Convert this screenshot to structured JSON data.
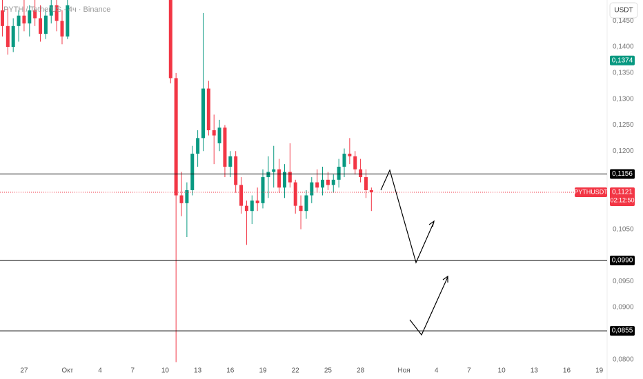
{
  "chart_data": {
    "type": "candlestick",
    "title": "PYTH / TetherUS · 4ч · Binance",
    "currency": "USDT",
    "symbol": "PYTHUSDT",
    "countdown": "02:12:50",
    "up_color": "#089981",
    "down_color": "#f23645",
    "x": [
      -2,
      -1.5,
      -1,
      -0.5,
      0,
      0.5,
      1,
      1.5,
      2,
      2.5,
      3,
      3.5,
      4,
      13.5,
      14,
      14.5,
      15,
      15.5,
      16,
      16.5,
      17,
      17.5,
      18,
      18.5,
      19,
      19.5,
      20,
      20.5,
      21,
      21.5,
      22,
      22.5,
      23,
      23.5,
      24,
      24.5,
      25,
      25.5,
      26,
      26.5,
      27,
      27.5,
      28,
      28.5,
      29,
      29.5,
      30,
      30.5,
      31,
      31.5,
      32
    ],
    "open": [
      0.147,
      0.144,
      0.14,
      0.144,
      0.146,
      0.1445,
      0.147,
      0.1455,
      0.1425,
      0.146,
      0.148,
      0.145,
      0.142,
      0.155,
      0.134,
      0.1115,
      0.11,
      0.1125,
      0.1195,
      0.1225,
      0.132,
      0.124,
      0.1215,
      0.1245,
      0.117,
      0.119,
      0.1135,
      0.1095,
      0.1085,
      0.1105,
      0.11,
      0.115,
      0.116,
      0.1165,
      0.113,
      0.116,
      0.114,
      0.1095,
      0.1085,
      0.1115,
      0.114,
      0.113,
      0.1145,
      0.1135,
      0.1145,
      0.117,
      0.1195,
      0.119,
      0.1165,
      0.115,
      0.1125
    ],
    "high": [
      0.149,
      0.1475,
      0.1455,
      0.147,
      0.149,
      0.148,
      0.149,
      0.148,
      0.147,
      0.149,
      0.149,
      0.147,
      0.149,
      0.158,
      0.135,
      0.116,
      0.114,
      0.121,
      0.124,
      0.1465,
      0.1335,
      0.127,
      0.126,
      0.125,
      0.12,
      0.12,
      0.115,
      0.1105,
      0.1115,
      0.113,
      0.1165,
      0.119,
      0.121,
      0.1185,
      0.1175,
      0.1215,
      0.1145,
      0.1115,
      0.1125,
      0.115,
      0.1165,
      0.117,
      0.116,
      0.1155,
      0.1185,
      0.1205,
      0.1225,
      0.12,
      0.1185,
      0.1165,
      0.113
    ],
    "low": [
      0.142,
      0.1385,
      0.139,
      0.141,
      0.143,
      0.142,
      0.144,
      0.141,
      0.1415,
      0.1445,
      0.143,
      0.1405,
      0.1415,
      0.133,
      0.0795,
      0.1075,
      0.1035,
      0.1115,
      0.117,
      0.12,
      0.123,
      0.1175,
      0.12,
      0.115,
      0.115,
      0.112,
      0.108,
      0.102,
      0.106,
      0.1085,
      0.109,
      0.111,
      0.113,
      0.112,
      0.111,
      0.113,
      0.108,
      0.105,
      0.107,
      0.11,
      0.112,
      0.1115,
      0.1125,
      0.112,
      0.113,
      0.115,
      0.1175,
      0.1155,
      0.114,
      0.111,
      0.1085
    ],
    "close": [
      0.144,
      0.14,
      0.144,
      0.146,
      0.1445,
      0.147,
      0.1455,
      0.1425,
      0.146,
      0.148,
      0.145,
      0.142,
      0.148,
      0.134,
      0.1115,
      0.11,
      0.1125,
      0.1195,
      0.1225,
      0.132,
      0.124,
      0.123,
      0.1245,
      0.117,
      0.119,
      0.1135,
      0.1095,
      0.1085,
      0.1105,
      0.11,
      0.115,
      0.116,
      0.1165,
      0.113,
      0.116,
      0.114,
      0.1095,
      0.1085,
      0.1115,
      0.114,
      0.113,
      0.1145,
      0.1135,
      0.1145,
      0.117,
      0.1195,
      0.119,
      0.1165,
      0.115,
      0.1125,
      0.1121
    ],
    "xlim": [
      -2.22,
      53.72
    ],
    "ylim": [
      0.0789,
      0.149
    ],
    "xticks": [
      {
        "value": 0,
        "label": "27"
      },
      {
        "value": 4,
        "label": "Окт"
      },
      {
        "value": 7,
        "label": "4"
      },
      {
        "value": 10,
        "label": "7"
      },
      {
        "value": 13,
        "label": "10"
      },
      {
        "value": 16,
        "label": "13"
      },
      {
        "value": 19,
        "label": "16"
      },
      {
        "value": 22,
        "label": "19"
      },
      {
        "value": 25,
        "label": "22"
      },
      {
        "value": 28,
        "label": "25"
      },
      {
        "value": 31,
        "label": "28"
      },
      {
        "value": 35,
        "label": "Ноя"
      },
      {
        "value": 38,
        "label": "4"
      },
      {
        "value": 41,
        "label": "7"
      },
      {
        "value": 44,
        "label": "10"
      },
      {
        "value": 47,
        "label": "13"
      },
      {
        "value": 50,
        "label": "16"
      },
      {
        "value": 53,
        "label": "19"
      }
    ],
    "yticks": [
      {
        "value": 0.145,
        "label": "0,1450"
      },
      {
        "value": 0.14,
        "label": "0,1400"
      },
      {
        "value": 0.135,
        "label": "0,1350"
      },
      {
        "value": 0.13,
        "label": "0,1300"
      },
      {
        "value": 0.125,
        "label": "0,1250"
      },
      {
        "value": 0.12,
        "label": "0,1200"
      },
      {
        "value": 0.105,
        "label": "0,1050"
      },
      {
        "value": 0.095,
        "label": "0,0950"
      },
      {
        "value": 0.09,
        "label": "0,0900"
      },
      {
        "value": 0.08,
        "label": "0,0800"
      }
    ],
    "grid": false,
    "levels": [
      {
        "value": 0.1156,
        "label": "0,1156"
      },
      {
        "value": 0.099,
        "label": "0,0990"
      },
      {
        "value": 0.0855,
        "label": "0,0855"
      }
    ],
    "marker": {
      "value": 0.1374,
      "label": "0,1374"
    },
    "last_price": {
      "value": 0.1121,
      "label": "0,1121"
    }
  }
}
